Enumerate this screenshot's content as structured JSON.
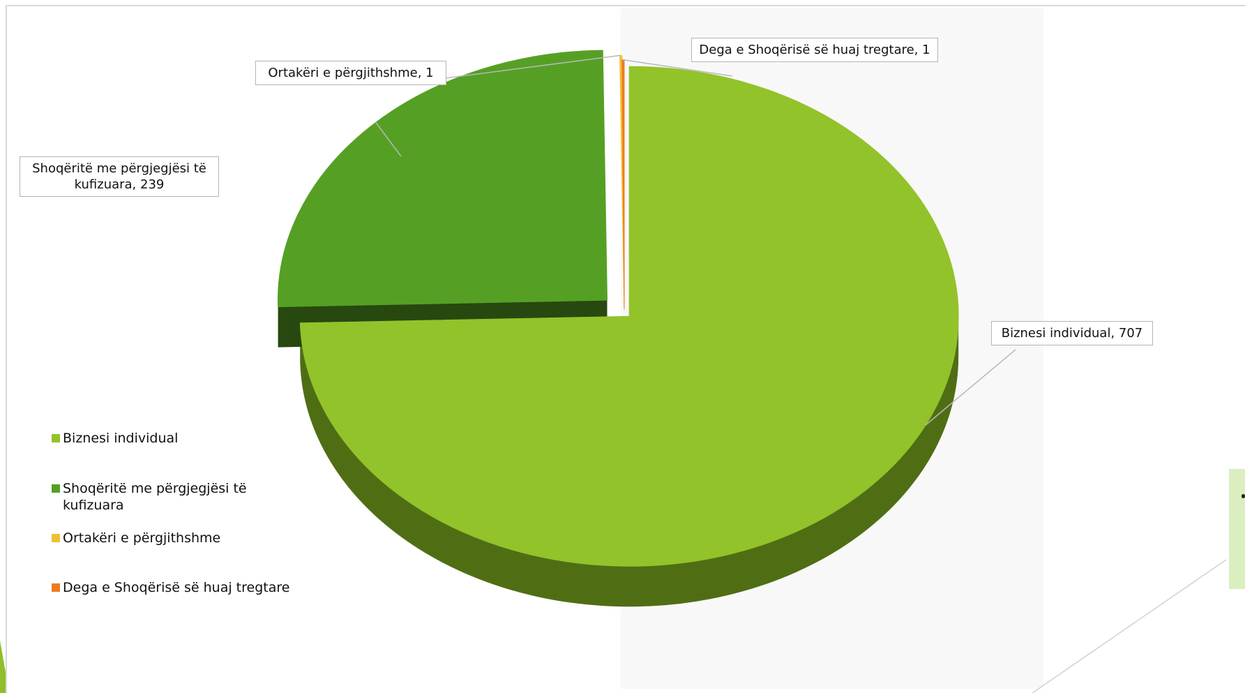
{
  "chart_data": {
    "type": "pie",
    "three_d": true,
    "exploded": true,
    "title": "",
    "slices": [
      {
        "label": "Biznesi individual",
        "value": 707,
        "color": "#92c32a",
        "side_color": "#4f6e14"
      },
      {
        "label": "Shoqëritë me përgjegjësi të kufizuara",
        "value": 239,
        "color": "#55a024",
        "side_color": "#27480f"
      },
      {
        "label": "Ortakëri e përgjithshme",
        "value": 1,
        "color": "#efc030",
        "side_color": "#8a6a12"
      },
      {
        "label": "Dega e Shoqërisë së huaj tregtare",
        "value": 1,
        "color": "#ee7b1e",
        "side_color": "#8a4410"
      }
    ],
    "data_labels": [
      {
        "text": "Biznesi individual, 707"
      },
      {
        "text": "Shoqëritë me përgjegjësi të kufizuara, 239"
      },
      {
        "text": "Ortakëri e përgjithshme, 1"
      },
      {
        "text": "Dega e Shoqërisë së huaj tregtare, 1"
      }
    ],
    "legend": {
      "placement": "left",
      "items": [
        {
          "label": "Biznesi individual",
          "color": "#92c32a"
        },
        {
          "label": "Shoqëritë me përgjegjësi të kufizuara",
          "color": "#55a024"
        },
        {
          "label": "Ortakëri e përgjithshme",
          "color": "#efc030"
        },
        {
          "label": "Dega e Shoqërisë së huaj tregtare",
          "color": "#ee7b1e"
        }
      ]
    }
  }
}
